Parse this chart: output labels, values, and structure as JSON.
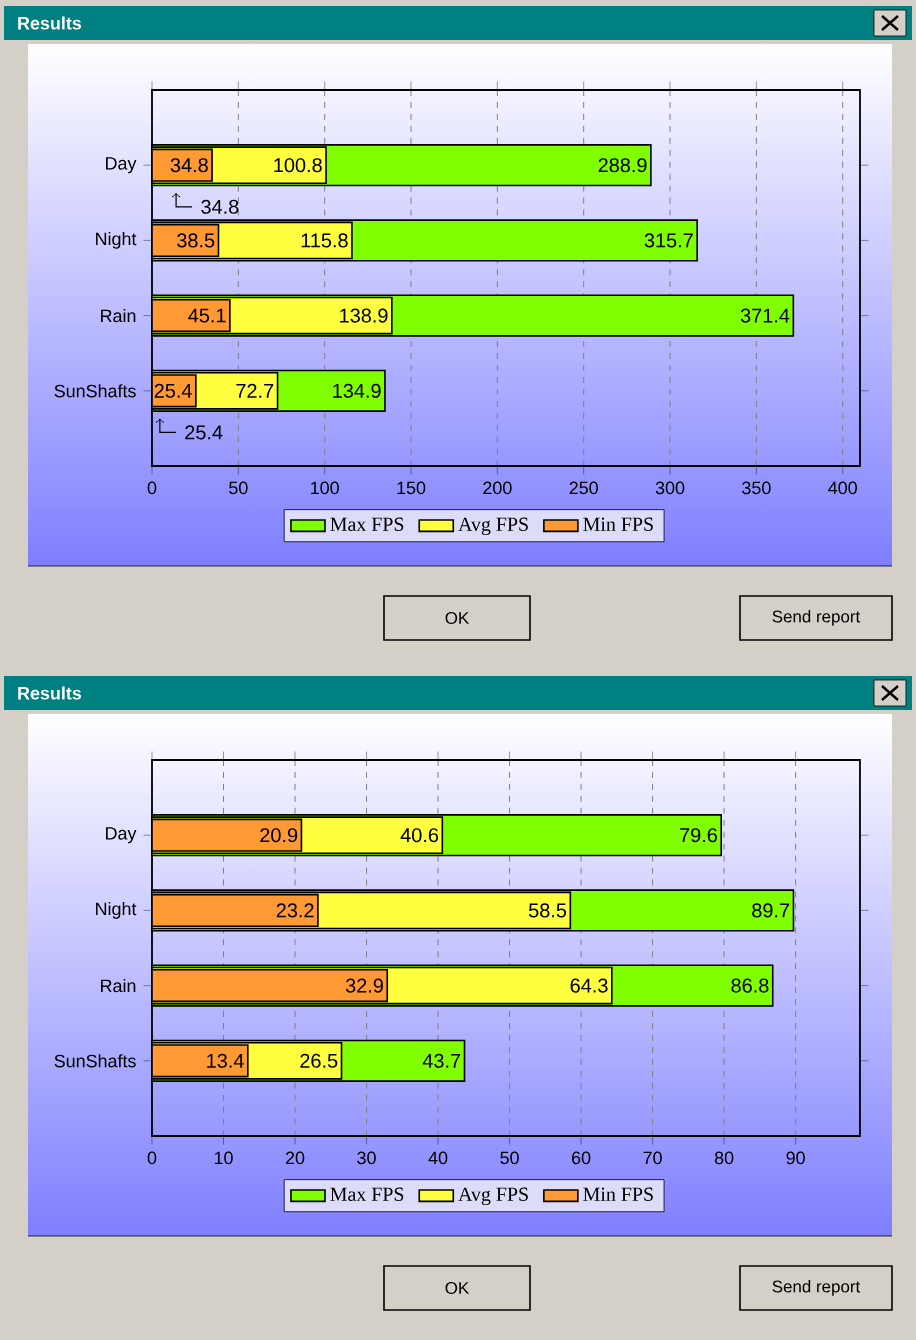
{
  "chart_data": [
    {
      "type": "bar",
      "orientation": "horizontal",
      "title": "Results",
      "categories": [
        "Day",
        "Night",
        "Rain",
        "SunShafts"
      ],
      "series": [
        {
          "name": "Max FPS",
          "color": "#80ff00",
          "values": [
            288.9,
            315.7,
            371.4,
            134.9
          ]
        },
        {
          "name": "Avg FPS",
          "color": "#ffff40",
          "values": [
            100.8,
            115.8,
            138.9,
            72.7
          ]
        },
        {
          "name": "Min FPS",
          "color": "#ff9933",
          "values": [
            34.8,
            38.5,
            45.1,
            25.4
          ]
        }
      ],
      "xlim": [
        0,
        410
      ],
      "xticks": [
        0,
        50,
        100,
        150,
        200,
        250,
        300,
        350,
        400
      ],
      "grid": "x",
      "legend": "bottom",
      "data_labels": true,
      "annotations": [
        {
          "text": "34.8",
          "x": 34.8,
          "y": "Day"
        },
        {
          "text": "25.4",
          "x": 25.4,
          "y": "SunShafts"
        },
        "OK",
        "Send report"
      ]
    },
    {
      "type": "bar",
      "orientation": "horizontal",
      "title": "Results",
      "categories": [
        "Day",
        "Night",
        "Rain",
        "SunShafts"
      ],
      "series": [
        {
          "name": "Max FPS",
          "color": "#80ff00",
          "values": [
            79.6,
            89.7,
            86.8,
            43.7
          ]
        },
        {
          "name": "Avg FPS",
          "color": "#ffff40",
          "values": [
            40.6,
            58.5,
            64.3,
            26.5
          ]
        },
        {
          "name": "Min FPS",
          "color": "#ff9933",
          "values": [
            20.9,
            23.2,
            32.9,
            13.4
          ]
        }
      ],
      "xlim": [
        0,
        99
      ],
      "xticks": [
        0,
        10,
        20,
        30,
        40,
        50,
        60,
        70,
        80,
        90
      ],
      "grid": "x",
      "legend": "bottom",
      "data_labels": true,
      "annotations": [
        "OK",
        "Send report"
      ]
    }
  ]
}
